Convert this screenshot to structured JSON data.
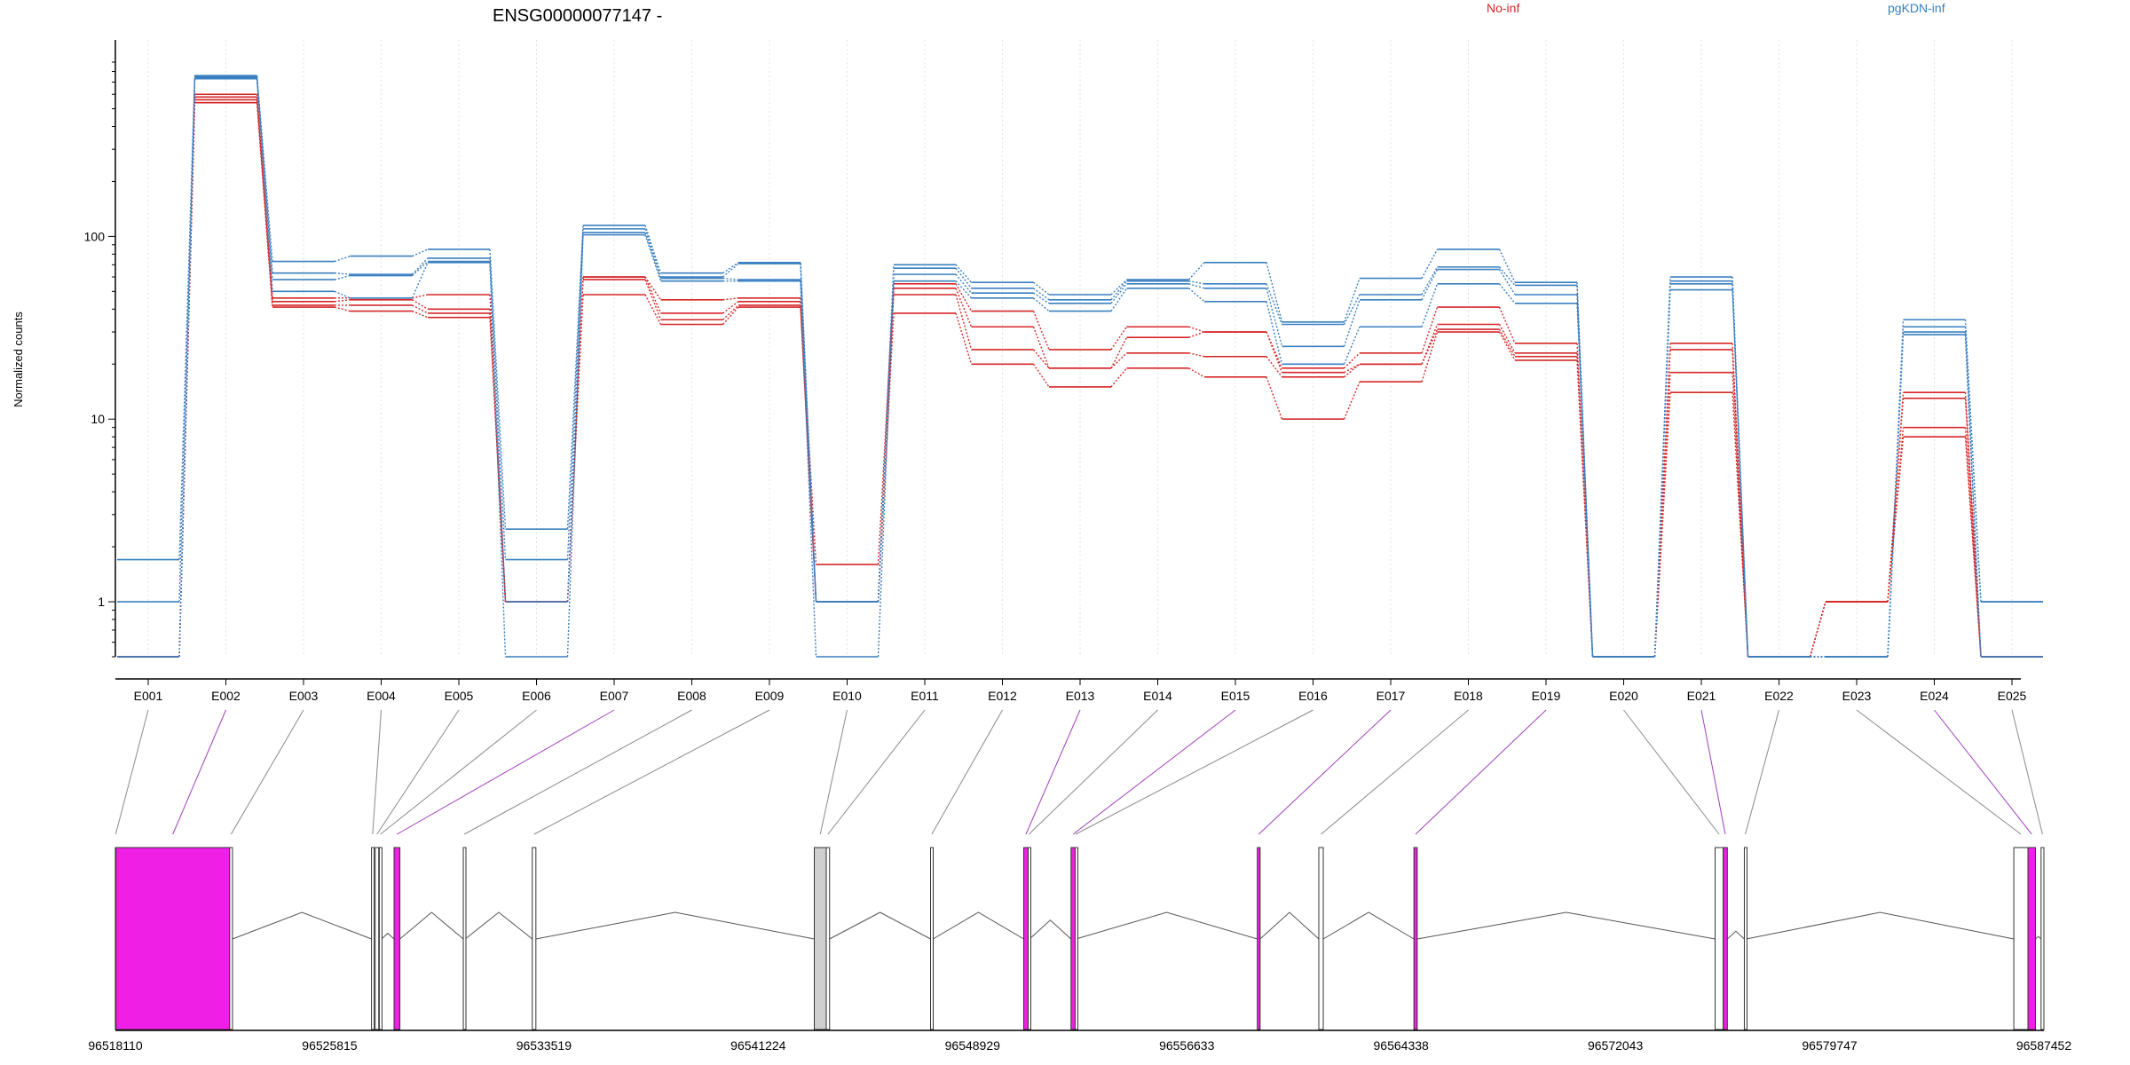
{
  "chart_data": {
    "type": "line",
    "title": "ENSG00000077147 -",
    "ylabel": "Normalized counts",
    "yscale": "log",
    "ylim": [
      0.5,
      900
    ],
    "yticks": [
      1,
      10,
      100
    ],
    "ytick_labels": [
      "1",
      "10",
      "100"
    ],
    "categories": [
      "E001",
      "E002",
      "E003",
      "E004",
      "E005",
      "E006",
      "E007",
      "E008",
      "E009",
      "E010",
      "E011",
      "E012",
      "E013",
      "E014",
      "E015",
      "E016",
      "E017",
      "E018",
      "E019",
      "E020",
      "E021",
      "E022",
      "E023",
      "E024",
      "E025"
    ],
    "legend": [
      {
        "label": "No-inf",
        "color": "#d62728"
      },
      {
        "label": "pgKDN-inf",
        "color": "#3a7fc0"
      }
    ],
    "series": [
      {
        "group": "No-inf",
        "color": "#d62728",
        "values": [
          0.5,
          600,
          46,
          46,
          48,
          1.0,
          60,
          45,
          46,
          1.6,
          55,
          39,
          24,
          32,
          30,
          19,
          23,
          41,
          26,
          0.5,
          26,
          0.5,
          1.0,
          14,
          0.5
        ]
      },
      {
        "group": "No-inf",
        "color": "#d62728",
        "values": [
          0.5,
          580,
          44,
          45,
          40,
          1.0,
          60,
          38,
          44,
          1.0,
          52,
          32,
          19,
          28,
          30,
          18,
          20,
          33,
          23,
          0.5,
          24,
          0.5,
          1.0,
          13,
          0.5
        ]
      },
      {
        "group": "No-inf",
        "color": "#d62728",
        "values": [
          0.5,
          560,
          42,
          42,
          38,
          1.0,
          58,
          35,
          42,
          1.0,
          48,
          24,
          19,
          23,
          22,
          17,
          20,
          31,
          22,
          0.5,
          18,
          0.5,
          1.0,
          9,
          0.5
        ]
      },
      {
        "group": "No-inf",
        "color": "#d62728",
        "values": [
          0.5,
          540,
          41,
          39,
          36,
          1.0,
          48,
          33,
          41,
          1.0,
          38,
          20,
          15,
          19,
          17,
          10,
          16,
          30,
          21,
          0.5,
          14,
          0.5,
          1.0,
          8,
          0.5
        ]
      },
      {
        "group": "pgKDN-inf",
        "color": "#3a7fc0",
        "values": [
          1.7,
          760,
          73,
          78,
          85,
          2.5,
          115,
          63,
          72,
          1.0,
          70,
          56,
          48,
          58,
          72,
          34,
          59,
          85,
          56,
          0.5,
          60,
          0.5,
          0.5,
          35,
          1.0
        ]
      },
      {
        "group": "pgKDN-inf",
        "color": "#3a7fc0",
        "values": [
          1.0,
          750,
          63,
          62,
          76,
          1.7,
          110,
          60,
          71,
          1.0,
          67,
          52,
          45,
          57,
          55,
          33,
          48,
          68,
          54,
          0.5,
          57,
          0.5,
          0.5,
          32,
          1.0
        ]
      },
      {
        "group": "pgKDN-inf",
        "color": "#3a7fc0",
        "values": [
          0.5,
          740,
          58,
          61,
          73,
          1.0,
          105,
          59,
          58,
          1.0,
          62,
          49,
          43,
          55,
          52,
          25,
          45,
          66,
          48,
          0.5,
          55,
          0.5,
          0.5,
          30,
          0.5
        ]
      },
      {
        "group": "pgKDN-inf",
        "color": "#3a7fc0",
        "values": [
          0.5,
          730,
          50,
          46,
          72,
          0.5,
          102,
          57,
          57,
          0.5,
          57,
          46,
          39,
          52,
          44,
          20,
          32,
          55,
          43,
          0.5,
          51,
          0.5,
          0.5,
          29,
          0.5
        ]
      }
    ],
    "genomic_axis": {
      "tick_labels": [
        "96518110",
        "96525815",
        "96533519",
        "96541224",
        "96548929",
        "96556633",
        "96564338",
        "96572043",
        "96579747",
        "96587452"
      ]
    },
    "exon_track": {
      "highlight_color": "#f01fe6",
      "exons": [
        {
          "id": "E001",
          "start": 96518110,
          "end": 96518130,
          "highlight": false
        },
        {
          "id": "E002",
          "start": 96518130,
          "end": 96522220,
          "highlight": true
        },
        {
          "id": "E003",
          "start": 96522220,
          "end": 96522320,
          "highlight": false
        },
        {
          "id": "E004",
          "start": 96527320,
          "end": 96527400,
          "highlight": false
        },
        {
          "id": "E005",
          "start": 96527450,
          "end": 96527580,
          "highlight": false
        },
        {
          "id": "E006",
          "start": 96527600,
          "end": 96527680,
          "highlight": false
        },
        {
          "id": "E007",
          "start": 96528130,
          "end": 96528340,
          "highlight": true
        },
        {
          "id": "E008",
          "start": 96530620,
          "end": 96530690,
          "highlight": false
        },
        {
          "id": "E009",
          "start": 96533100,
          "end": 96533230,
          "highlight": false
        },
        {
          "id": "E010",
          "start": 96543240,
          "end": 96543670,
          "highlight": false
        },
        {
          "id": "E011",
          "start": 96543670,
          "end": 96543790,
          "highlight": false
        },
        {
          "id": "E012",
          "start": 96547420,
          "end": 96547510,
          "highlight": false
        },
        {
          "id": "E013",
          "start": 96550770,
          "end": 96550930,
          "highlight": true
        },
        {
          "id": "E014",
          "start": 96550930,
          "end": 96550980,
          "highlight": false
        },
        {
          "id": "E015",
          "start": 96552470,
          "end": 96552620,
          "highlight": true
        },
        {
          "id": "E016",
          "start": 96552620,
          "end": 96552650,
          "highlight": false
        },
        {
          "id": "E017",
          "start": 96559170,
          "end": 96559270,
          "highlight": true
        },
        {
          "id": "E018",
          "start": 96561380,
          "end": 96561540,
          "highlight": false
        },
        {
          "id": "E019",
          "start": 96564800,
          "end": 96564920,
          "highlight": true
        },
        {
          "id": "E020",
          "start": 96575630,
          "end": 96575920,
          "highlight": false
        },
        {
          "id": "E021",
          "start": 96575920,
          "end": 96576070,
          "highlight": true
        },
        {
          "id": "E022",
          "start": 96576680,
          "end": 96576750,
          "highlight": false
        },
        {
          "id": "E023",
          "start": 96586370,
          "end": 96586880,
          "highlight": false
        },
        {
          "id": "E024",
          "start": 96586880,
          "end": 96587150,
          "highlight": true
        },
        {
          "id": "E025",
          "start": 96587350,
          "end": 96587452,
          "highlight": false
        }
      ]
    }
  }
}
